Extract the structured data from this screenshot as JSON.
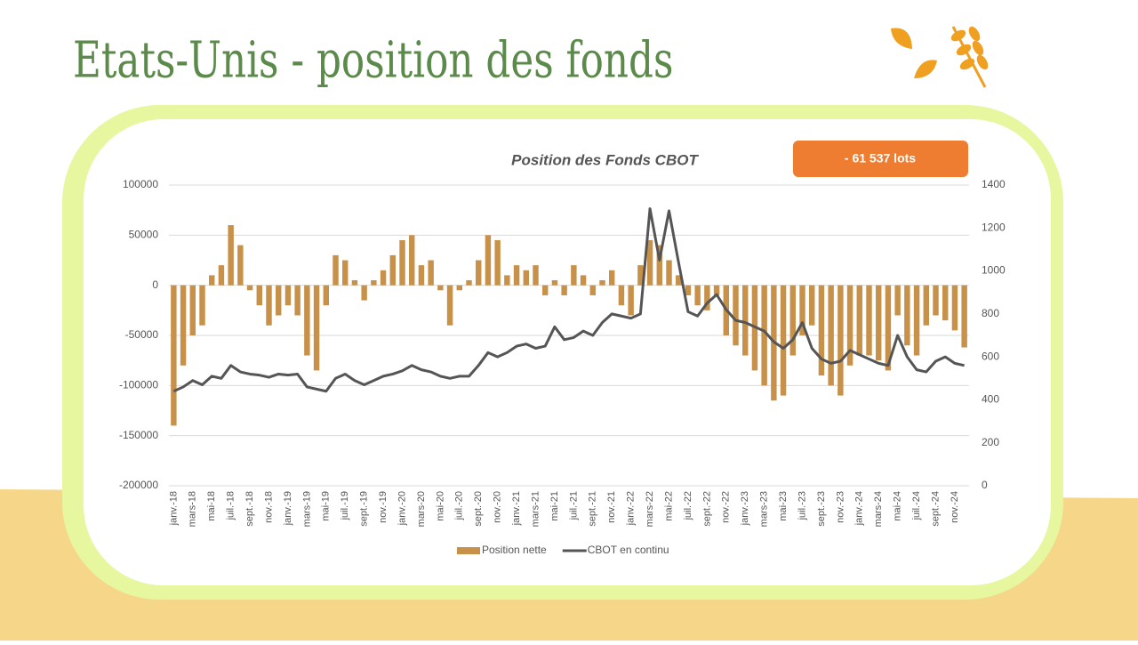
{
  "title": "Etats-Unis - position des fonds",
  "chart_data": {
    "type": "bar-line",
    "title": "Position des Fonds CBOT",
    "annotation": "- 61 537 lots",
    "categories": [
      "janv.-18",
      null,
      "mars-18",
      null,
      "mai-18",
      null,
      "juil.-18",
      null,
      "sept.-18",
      null,
      "nov.-18",
      null,
      "janv.-19",
      null,
      "mars-19",
      null,
      "mai-19",
      null,
      "juil.-19",
      null,
      "sept.-19",
      null,
      "nov.-19",
      null,
      "janv.-20",
      null,
      "mars-20",
      null,
      "mai-20",
      null,
      "juil.-20",
      null,
      "sept.-20",
      null,
      "nov.-20",
      null,
      "janv.-21",
      null,
      "mars-21",
      null,
      "mai-21",
      null,
      "juil.-21",
      null,
      "sept.-21",
      null,
      "nov.-21",
      null,
      "janv.-22",
      null,
      "mars-22",
      null,
      "mai-22",
      null,
      "juil.-22",
      null,
      "sept.-22",
      null,
      "nov.-22",
      null,
      "janv.-23",
      null,
      "mars-23",
      null,
      "mai-23",
      null,
      "juil.-23",
      null,
      "sept.-23",
      null,
      "nov.-23",
      null,
      "janv.-24",
      null,
      "mars-24",
      null,
      "mai-24",
      null,
      "juil.-24",
      null,
      "sept.-24",
      null,
      "nov.-24",
      null
    ],
    "series": [
      {
        "name": "Position nette",
        "color": "#c8914a",
        "values": [
          -140000,
          -80000,
          -50000,
          -40000,
          10000,
          20000,
          60000,
          40000,
          -5000,
          -20000,
          -40000,
          -30000,
          -20000,
          -30000,
          -70000,
          -85000,
          -20000,
          30000,
          25000,
          5000,
          -15000,
          5000,
          15000,
          30000,
          45000,
          50000,
          20000,
          25000,
          -5000,
          -40000,
          -5000,
          5000,
          25000,
          50000,
          45000,
          10000,
          20000,
          15000,
          20000,
          -10000,
          5000,
          -10000,
          20000,
          10000,
          -10000,
          5000,
          15000,
          -20000,
          -30000,
          20000,
          45000,
          40000,
          25000,
          10000,
          -10000,
          -20000,
          -25000,
          -10000,
          -50000,
          -60000,
          -70000,
          -85000,
          -100000,
          -115000,
          -110000,
          -70000,
          -50000,
          -40000,
          -90000,
          -100000,
          -110000,
          -80000,
          -70000,
          -70000,
          -75000,
          -85000,
          -30000,
          -60000,
          -70000,
          -40000,
          -30000,
          -35000,
          -45000,
          -62000
        ]
      },
      {
        "name": "CBOT en continu",
        "color": "#555555",
        "axis": "y2",
        "values": [
          440,
          460,
          490,
          470,
          510,
          500,
          560,
          530,
          520,
          515,
          505,
          520,
          515,
          520,
          460,
          450,
          440,
          500,
          520,
          490,
          470,
          490,
          510,
          520,
          535,
          560,
          540,
          530,
          510,
          500,
          510,
          510,
          560,
          620,
          600,
          620,
          650,
          660,
          640,
          650,
          740,
          680,
          690,
          720,
          700,
          760,
          800,
          790,
          780,
          800,
          1290,
          1050,
          1280,
          1040,
          810,
          790,
          850,
          890,
          820,
          770,
          760,
          740,
          720,
          670,
          640,
          680,
          760,
          640,
          590,
          570,
          580,
          630,
          610,
          590,
          570,
          560,
          700,
          600,
          540,
          530,
          580,
          600,
          570,
          560
        ]
      }
    ],
    "ylim": [
      -200000,
      100000
    ],
    "yticks": [
      -200000,
      -150000,
      -100000,
      -50000,
      0,
      50000,
      100000
    ],
    "y2lim": [
      0,
      1400
    ],
    "y2ticks": [
      0,
      200,
      400,
      600,
      800,
      1000,
      1200,
      1400
    ],
    "grid": true,
    "legend": "bottom"
  }
}
